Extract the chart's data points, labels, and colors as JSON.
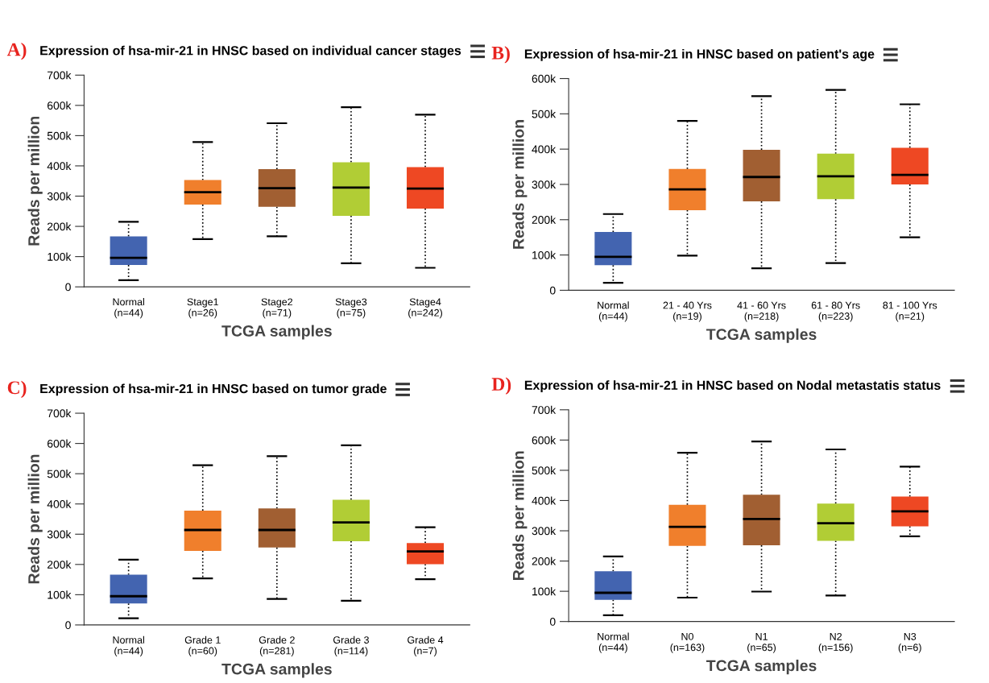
{
  "chart_data": [
    {
      "type": "box",
      "title": "Expression of hsa-mir-21 in HNSC based on individual cancer stages",
      "xlabel": "TCGA samples",
      "ylabel": "Reads per million",
      "annotations": [
        "A)"
      ],
      "categories": [
        "Normal\n(n=44)",
        "Stage1\n(n=26)",
        "Stage2\n(n=71)",
        "Stage3\n(n=75)",
        "Stage4\n(n=242)"
      ],
      "colors": [
        "#4364b0",
        "#f07f2c",
        "#a15f32",
        "#b1cd35",
        "#ee4823"
      ],
      "boxes": [
        {
          "low": 22000,
          "q1": 72000,
          "median": 96000,
          "q3": 167000,
          "high": 215000
        },
        {
          "low": 158000,
          "q1": 272000,
          "median": 313000,
          "q3": 353000,
          "high": 479000
        },
        {
          "low": 167000,
          "q1": 265000,
          "median": 326000,
          "q3": 389000,
          "high": 541000
        },
        {
          "low": 78000,
          "q1": 235000,
          "median": 328000,
          "q3": 412000,
          "high": 594000
        },
        {
          "low": 63000,
          "q1": 259000,
          "median": 325000,
          "q3": 396000,
          "high": 569000
        }
      ],
      "ylim": [
        0,
        700000
      ],
      "yticks": [
        0,
        {
          "value": 100000,
          "label": "100k"
        },
        {
          "value": 200000,
          "label": "200k"
        },
        {
          "value": 300000,
          "label": "300k"
        },
        {
          "value": 400000,
          "label": "400k"
        },
        {
          "value": 500000,
          "label": "500k"
        },
        {
          "value": 600000,
          "label": "600k"
        },
        {
          "value": 700000,
          "label": "700k"
        }
      ],
      "grid": false,
      "legend": false
    },
    {
      "type": "box",
      "title": "Expression of hsa-mir-21 in HNSC based on patient's age",
      "xlabel": "TCGA samples",
      "ylabel": "Reads per million",
      "annotations": [
        "B)"
      ],
      "categories": [
        "Normal\n(n=44)",
        "21 - 40 Yrs\n(n=19)",
        "41 - 60 Yrs\n(n=218)",
        "61 - 80 Yrs\n(n=223)",
        "81 - 100 Yrs\n(n=21)"
      ],
      "colors": [
        "#4364b0",
        "#f07f2c",
        "#a15f32",
        "#b1cd35",
        "#ee4823"
      ],
      "boxes": [
        {
          "low": 21000,
          "q1": 71000,
          "median": 95000,
          "q3": 165000,
          "high": 216000
        },
        {
          "low": 98000,
          "q1": 227000,
          "median": 286000,
          "q3": 344000,
          "high": 480000
        },
        {
          "low": 62000,
          "q1": 252000,
          "median": 321000,
          "q3": 398000,
          "high": 550000
        },
        {
          "low": 77000,
          "q1": 258000,
          "median": 323000,
          "q3": 387000,
          "high": 568000
        },
        {
          "low": 150000,
          "q1": 300000,
          "median": 327000,
          "q3": 404000,
          "high": 527000
        }
      ],
      "ylim": [
        0,
        600000
      ],
      "yticks": [
        0,
        {
          "value": 100000,
          "label": "100k"
        },
        {
          "value": 200000,
          "label": "200k"
        },
        {
          "value": 300000,
          "label": "300k"
        },
        {
          "value": 400000,
          "label": "400k"
        },
        {
          "value": 500000,
          "label": "500k"
        },
        {
          "value": 600000,
          "label": "600k"
        }
      ],
      "grid": false,
      "legend": false
    },
    {
      "type": "box",
      "title": "Expression of hsa-mir-21 in HNSC based on tumor grade",
      "xlabel": "TCGA samples",
      "ylabel": "Reads per million",
      "annotations": [
        "C)"
      ],
      "categories": [
        "Normal\n(n=44)",
        "Grade 1\n(n=60)",
        "Grade 2\n(n=281)",
        "Grade 3\n(n=114)",
        "Grade 4\n(n=7)"
      ],
      "colors": [
        "#4364b0",
        "#f07f2c",
        "#a15f32",
        "#b1cd35",
        "#ee4823"
      ],
      "boxes": [
        {
          "low": 22000,
          "q1": 71000,
          "median": 95000,
          "q3": 166000,
          "high": 216000
        },
        {
          "low": 154000,
          "q1": 245000,
          "median": 314000,
          "q3": 378000,
          "high": 528000
        },
        {
          "low": 86000,
          "q1": 256000,
          "median": 314000,
          "q3": 385000,
          "high": 558000
        },
        {
          "low": 80000,
          "q1": 277000,
          "median": 339000,
          "q3": 414000,
          "high": 594000
        },
        {
          "low": 151000,
          "q1": 201000,
          "median": 243000,
          "q3": 271000,
          "high": 323000
        }
      ],
      "ylim": [
        0,
        700000
      ],
      "yticks": [
        0,
        {
          "value": 100000,
          "label": "100k"
        },
        {
          "value": 200000,
          "label": "200k"
        },
        {
          "value": 300000,
          "label": "300k"
        },
        {
          "value": 400000,
          "label": "400k"
        },
        {
          "value": 500000,
          "label": "500k"
        },
        {
          "value": 600000,
          "label": "600k"
        },
        {
          "value": 700000,
          "label": "700k"
        }
      ],
      "grid": false,
      "legend": false
    },
    {
      "type": "box",
      "title": "Expression of hsa-mir-21 in HNSC based on Nodal metastatis status",
      "xlabel": "TCGA samples",
      "ylabel": "Reads per million",
      "annotations": [
        "D)"
      ],
      "categories": [
        "Normal\n(n=44)",
        "N0\n(n=163)",
        "N1\n(n=65)",
        "N2\n(n=156)",
        "N3\n(n=6)"
      ],
      "colors": [
        "#4364b0",
        "#f07f2c",
        "#a15f32",
        "#b1cd35",
        "#ee4823"
      ],
      "boxes": [
        {
          "low": 21000,
          "q1": 72000,
          "median": 95000,
          "q3": 166000,
          "high": 215000
        },
        {
          "low": 79000,
          "q1": 250000,
          "median": 313000,
          "q3": 386000,
          "high": 558000
        },
        {
          "low": 99000,
          "q1": 252000,
          "median": 339000,
          "q3": 419000,
          "high": 595000
        },
        {
          "low": 86000,
          "q1": 267000,
          "median": 325000,
          "q3": 390000,
          "high": 569000
        },
        {
          "low": 282000,
          "q1": 315000,
          "median": 364000,
          "q3": 413000,
          "high": 512000
        }
      ],
      "ylim": [
        0,
        700000
      ],
      "yticks": [
        0,
        {
          "value": 100000,
          "label": "100k"
        },
        {
          "value": 200000,
          "label": "200k"
        },
        {
          "value": 300000,
          "label": "300k"
        },
        {
          "value": 400000,
          "label": "400k"
        },
        {
          "value": 500000,
          "label": "500k"
        },
        {
          "value": 600000,
          "label": "600k"
        },
        {
          "value": 700000,
          "label": "700k"
        }
      ],
      "grid": false,
      "legend": false
    }
  ]
}
